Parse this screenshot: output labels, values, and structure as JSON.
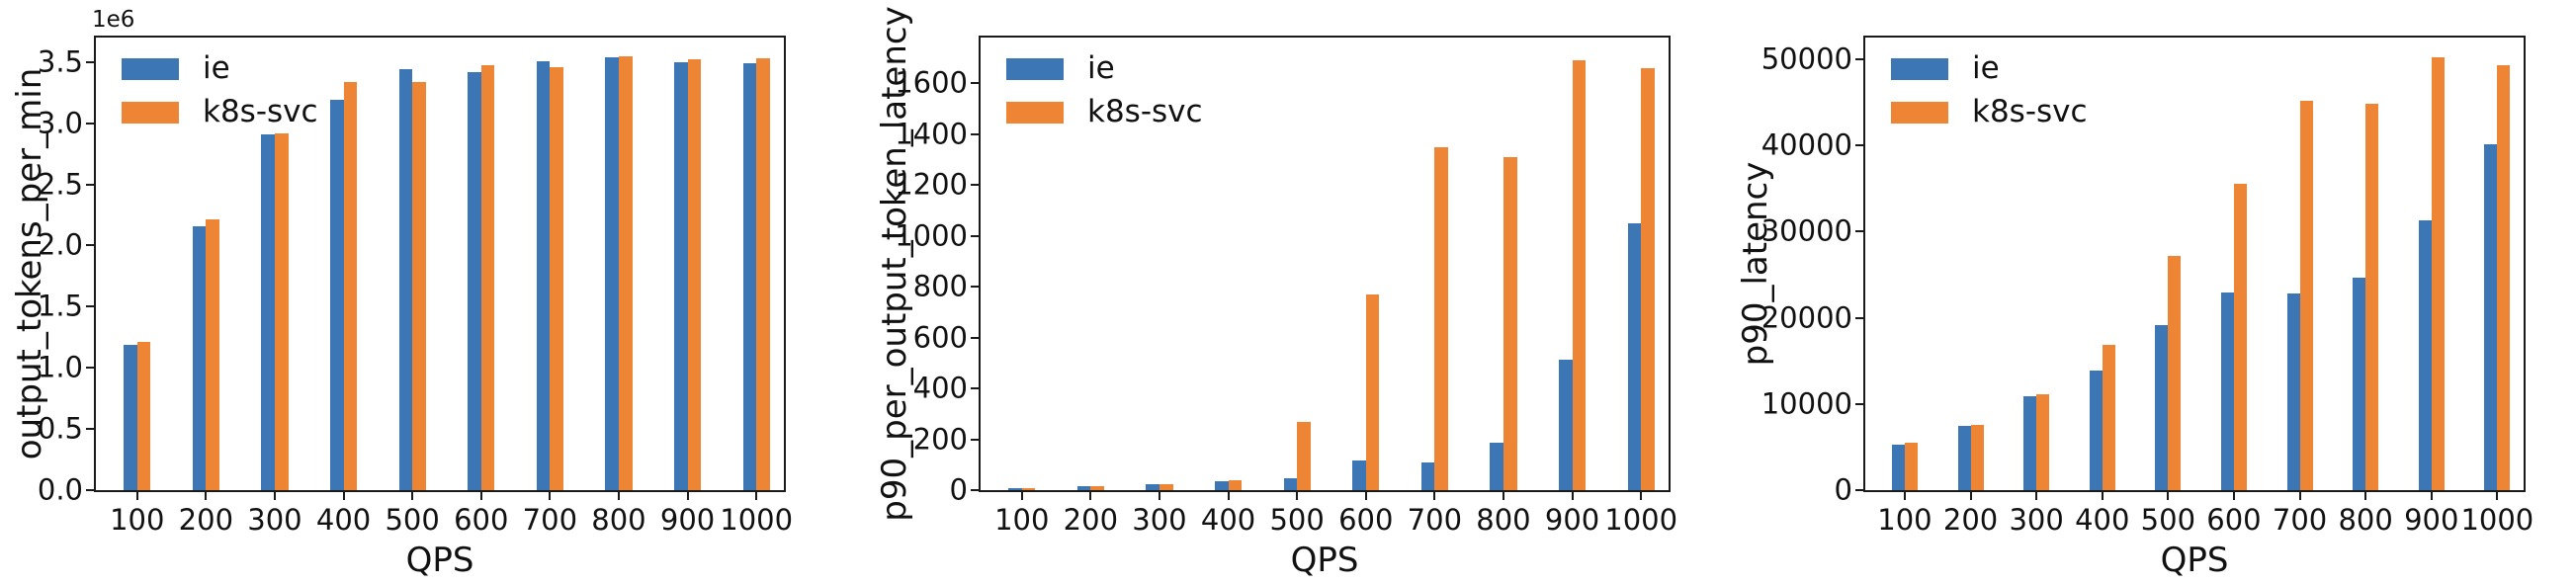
{
  "figure": {
    "background": "#ffffff",
    "axis_color": "#1a1a1a",
    "text_color": "#111111"
  },
  "palette": {
    "series": {
      "ie": "#3d76b4",
      "k8s-svc": "#ee8535"
    }
  },
  "legend": {
    "items": [
      "ie",
      "k8s-svc"
    ],
    "position": "upper left"
  },
  "chart_data": [
    {
      "type": "bar",
      "xlabel": "QPS",
      "ylabel": "output_tokens_per_min",
      "offset_text": "1e6",
      "grid": false,
      "legend_position": "upper left",
      "categories": [
        100,
        200,
        300,
        400,
        500,
        600,
        700,
        800,
        900,
        1000
      ],
      "series": [
        {
          "name": "ie",
          "values": [
            1190000,
            2160000,
            2910000,
            3190000,
            3440000,
            3420000,
            3510000,
            3540000,
            3500000,
            3490000
          ]
        },
        {
          "name": "k8s-svc",
          "values": [
            1210000,
            2210000,
            2920000,
            3340000,
            3340000,
            3470000,
            3460000,
            3550000,
            3520000,
            3530000
          ]
        }
      ],
      "ylim": [
        0,
        3700000
      ],
      "yticks": [
        0,
        500000,
        1000000,
        1500000,
        2000000,
        2500000,
        3000000,
        3500000
      ],
      "ytick_labels": [
        "0.0",
        "0.5",
        "1.0",
        "1.5",
        "2.0",
        "2.5",
        "3.0",
        "3.5"
      ]
    },
    {
      "type": "bar",
      "xlabel": "QPS",
      "ylabel": "p90_per_output_token_latency",
      "grid": false,
      "legend_position": "upper left",
      "categories": [
        100,
        200,
        300,
        400,
        500,
        600,
        700,
        800,
        900,
        1000
      ],
      "series": [
        {
          "name": "ie",
          "values": [
            8,
            16,
            24,
            34,
            48,
            118,
            108,
            185,
            515,
            1050
          ]
        },
        {
          "name": "k8s-svc",
          "values": [
            9,
            17,
            25,
            40,
            270,
            770,
            1350,
            1310,
            1690,
            1660
          ]
        }
      ],
      "ylim": [
        0,
        1780
      ],
      "yticks": [
        0,
        200,
        400,
        600,
        800,
        1000,
        1200,
        1400,
        1600
      ],
      "ytick_labels": [
        "0",
        "200",
        "400",
        "600",
        "800",
        "1000",
        "1200",
        "1400",
        "1600"
      ]
    },
    {
      "type": "bar",
      "xlabel": "QPS",
      "ylabel": "p90_latency",
      "grid": false,
      "legend_position": "upper left",
      "categories": [
        100,
        200,
        300,
        400,
        500,
        600,
        700,
        800,
        900,
        1000
      ],
      "series": [
        {
          "name": "ie",
          "values": [
            5300,
            7400,
            10900,
            13900,
            19200,
            22900,
            22800,
            24600,
            31300,
            40100
          ]
        },
        {
          "name": "k8s-svc",
          "values": [
            5450,
            7600,
            11100,
            16800,
            27200,
            35500,
            45200,
            44800,
            50200,
            49300
          ]
        }
      ],
      "ylim": [
        0,
        52500
      ],
      "yticks": [
        0,
        10000,
        20000,
        30000,
        40000,
        50000
      ],
      "ytick_labels": [
        "0",
        "10000",
        "20000",
        "30000",
        "40000",
        "50000"
      ]
    }
  ]
}
